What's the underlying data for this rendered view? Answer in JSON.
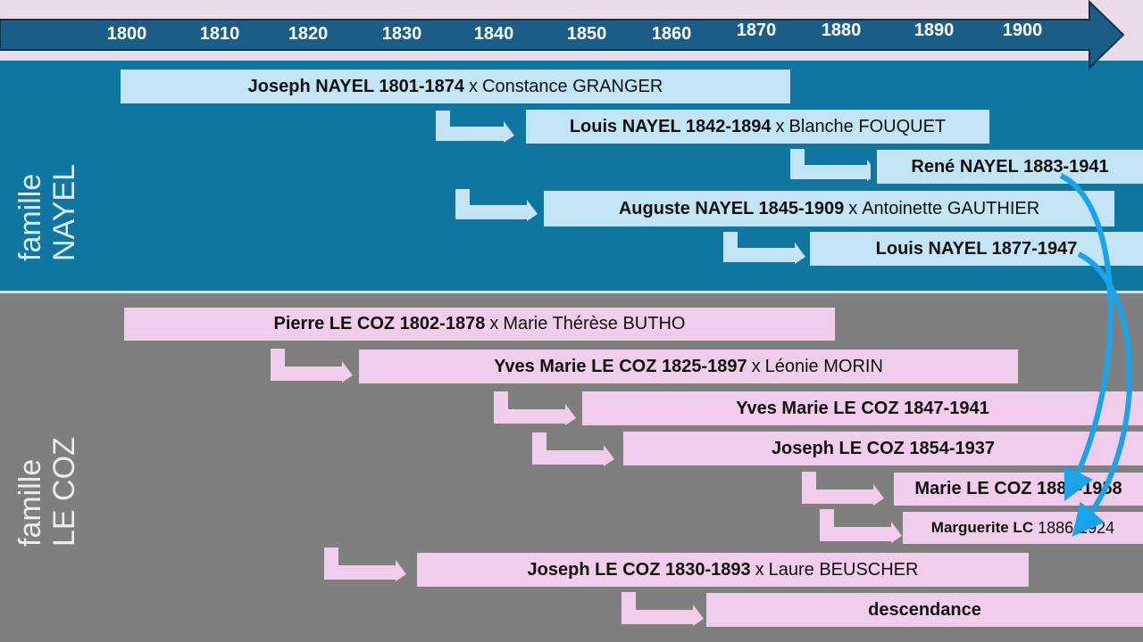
{
  "timeline": {
    "ticks": [
      "1800",
      "1810",
      "1820",
      "1830",
      "1840",
      "1850",
      "1860",
      "1870",
      "1880",
      "1890",
      "1900"
    ]
  },
  "families": {
    "nayel": {
      "line1": "famille",
      "line2": "NAYEL"
    },
    "lecoz": {
      "line1": "famille",
      "line2": "LE COZ"
    }
  },
  "persons": [
    {
      "name": "Joseph NAYEL 1801-1874",
      "spouse_prefix": "x",
      "spouse": "Constance GRANGER"
    },
    {
      "name": "Louis NAYEL 1842-1894",
      "spouse_prefix": "x",
      "spouse": "Blanche FOUQUET"
    },
    {
      "name": "René NAYEL 1883-1941"
    },
    {
      "name": "Auguste NAYEL 1845-1909",
      "spouse_prefix": "x",
      "spouse": "Antoinette GAUTHIER"
    },
    {
      "name": "Louis NAYEL 1877-1947"
    },
    {
      "name": "Pierre LE COZ 1802-1878",
      "spouse_prefix": "x",
      "spouse": "Marie Thérèse BUTHO"
    },
    {
      "name": "Yves Marie LE COZ 1825-1897",
      "spouse_prefix": "x",
      "spouse": "Léonie MORIN"
    },
    {
      "name": "Yves Marie LE COZ 1847-1941"
    },
    {
      "name": "Joseph LE COZ 1854-1937"
    },
    {
      "name": "Marie LE COZ 1884-1958"
    },
    {
      "name": "Marguerite LC",
      "suffix": "1886-1924"
    },
    {
      "name": "Joseph LE COZ 1830-1893",
      "spouse_prefix": "x",
      "spouse": "Laure BEUSCHER"
    },
    {
      "name": "descendance"
    }
  ],
  "colors": {
    "timeline_arrow": "#1a5d86",
    "nayel_band": "#0e76a0",
    "lecoz_band": "#7f7f7f",
    "nayel_bar": "#c3e4f5",
    "lecoz_bar": "#f0cdeb",
    "marriage_arrow": "#1aa3e8"
  }
}
